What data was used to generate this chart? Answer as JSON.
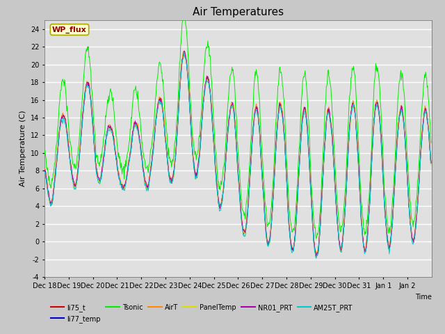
{
  "title": "Air Temperatures",
  "xlabel": "Time",
  "ylabel": "Air Temperature (C)",
  "ylim": [
    -4,
    25
  ],
  "yticks": [
    -4,
    -2,
    0,
    2,
    4,
    6,
    8,
    10,
    12,
    14,
    16,
    18,
    20,
    22,
    24
  ],
  "xtick_labels": [
    "Dec 18",
    "Dec 19",
    "Dec 20",
    "Dec 21",
    "Dec 22",
    "Dec 23",
    "Dec 24",
    "Dec 25",
    "Dec 26",
    "Dec 27",
    "Dec 28",
    "Dec 29",
    "Dec 30",
    "Dec 31",
    "Jan 1",
    "Jan 2"
  ],
  "legend_labels": [
    "li75_t",
    "li77_temp",
    "Tsonic",
    "AirT",
    "PanelTemp",
    "NR01_PRT",
    "AM25T_PRT"
  ],
  "line_colors": [
    "#cc0000",
    "#0000cc",
    "#00ee00",
    "#ff8800",
    "#dddd00",
    "#aa00aa",
    "#00cccc"
  ],
  "annotation_text": "WP_flux",
  "annotation_color": "#8b0000",
  "annotation_bg": "#ffffcc",
  "annotation_edge": "#aaaa00",
  "fig_facecolor": "#c8c8c8",
  "plot_facecolor": "#e0e0e0",
  "grid_color": "#ffffff",
  "title_fontsize": 11,
  "tick_fontsize": 7,
  "label_fontsize": 8,
  "legend_fontsize": 7
}
